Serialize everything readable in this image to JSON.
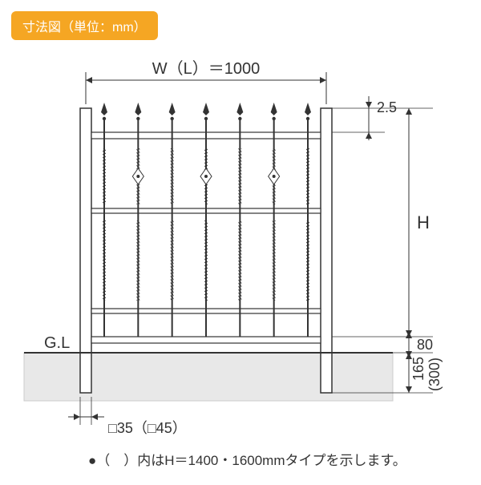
{
  "badge": {
    "text": "寸法図（単位：mm）",
    "bg": "#f5a623",
    "color": "#ffffff"
  },
  "labels": {
    "width": "W（L）＝1000",
    "gl": "G.L",
    "h": "H",
    "top_gap": "2.5",
    "lower_gap": "80",
    "bury": "165",
    "bury_alt": "(300)",
    "post_size": "□35（□45）",
    "footnote": "●（　）内はH＝1400・1600mmタイプを示します。"
  },
  "colors": {
    "line": "#333333",
    "ground_fill": "#e8e8e8",
    "ground_stroke": "#cccccc",
    "post_fill": "#ffffff"
  },
  "geometry": {
    "post_width": 14,
    "picket_count": 7,
    "arrow_size": 6
  }
}
